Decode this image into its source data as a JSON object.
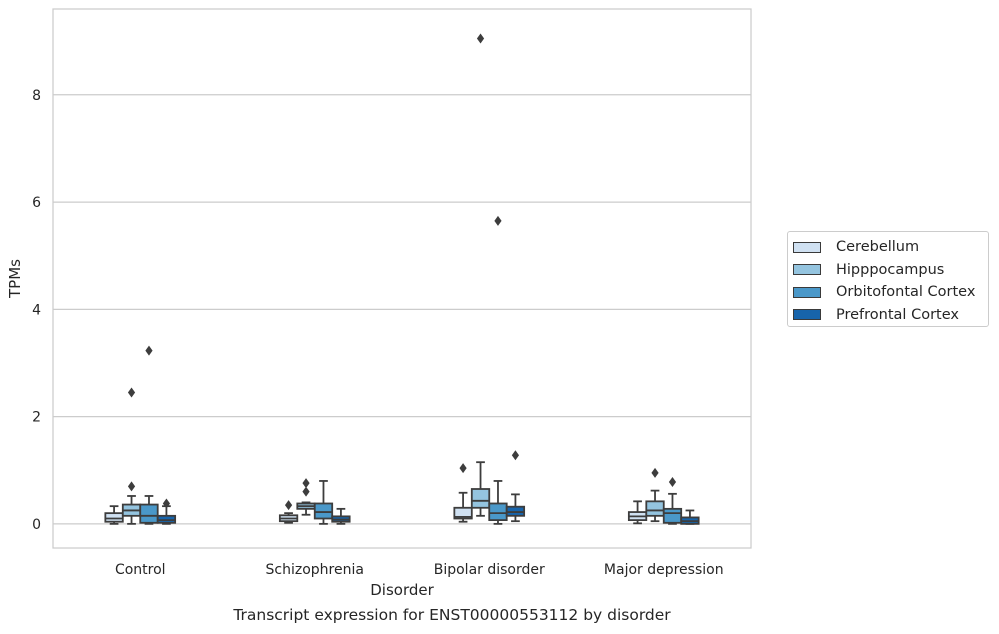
{
  "chart_data": {
    "type": "box",
    "caption": "Transcript expression for ENST00000553112 by disorder",
    "xlabel": "Disorder",
    "ylabel": "TPMs",
    "ylim": [
      -0.45,
      9.6
    ],
    "yticks": [
      0,
      2,
      4,
      6,
      8
    ],
    "grid": "horizontal",
    "legend_position": "right",
    "categories": [
      "Control",
      "Schizophrenia",
      "Bipolar disorder",
      "Major depression"
    ],
    "series": [
      {
        "name": "Cerebellum",
        "color": "#d0e1f2",
        "boxes": [
          {
            "whislo": 0.0,
            "q1": 0.04,
            "med": 0.1,
            "q3": 0.2,
            "whishi": 0.33,
            "fliers": []
          },
          {
            "whislo": 0.02,
            "q1": 0.05,
            "med": 0.1,
            "q3": 0.16,
            "whishi": 0.2,
            "fliers": [
              0.35
            ]
          },
          {
            "whislo": 0.04,
            "q1": 0.1,
            "med": 0.13,
            "q3": 0.3,
            "whishi": 0.58,
            "fliers": [
              1.04
            ]
          },
          {
            "whislo": 0.01,
            "q1": 0.07,
            "med": 0.14,
            "q3": 0.22,
            "whishi": 0.42,
            "fliers": []
          }
        ]
      },
      {
        "name": "Hipppocampus",
        "color": "#94c4df",
        "boxes": [
          {
            "whislo": 0.0,
            "q1": 0.15,
            "med": 0.25,
            "q3": 0.36,
            "whishi": 0.52,
            "fliers": [
              0.7,
              2.45
            ]
          },
          {
            "whislo": 0.17,
            "q1": 0.28,
            "med": 0.33,
            "q3": 0.38,
            "whishi": 0.4,
            "fliers": [
              0.6,
              0.76
            ]
          },
          {
            "whislo": 0.15,
            "q1": 0.3,
            "med": 0.43,
            "q3": 0.65,
            "whishi": 1.15,
            "fliers": [
              9.05
            ]
          },
          {
            "whislo": 0.05,
            "q1": 0.15,
            "med": 0.25,
            "q3": 0.42,
            "whishi": 0.62,
            "fliers": [
              0.95
            ]
          }
        ]
      },
      {
        "name": "Orbitofontal Cortex",
        "color": "#4a98c9",
        "boxes": [
          {
            "whislo": 0.0,
            "q1": 0.02,
            "med": 0.15,
            "q3": 0.36,
            "whishi": 0.52,
            "fliers": [
              3.23
            ]
          },
          {
            "whislo": 0.0,
            "q1": 0.1,
            "med": 0.22,
            "q3": 0.38,
            "whishi": 0.8,
            "fliers": []
          },
          {
            "whislo": 0.0,
            "q1": 0.07,
            "med": 0.2,
            "q3": 0.38,
            "whishi": 0.8,
            "fliers": [
              5.65
            ]
          },
          {
            "whislo": 0.0,
            "q1": 0.02,
            "med": 0.2,
            "q3": 0.28,
            "whishi": 0.56,
            "fliers": [
              0.78
            ]
          }
        ]
      },
      {
        "name": "Prefrontal Cortex",
        "color": "#1764ab",
        "boxes": [
          {
            "whislo": 0.0,
            "q1": 0.02,
            "med": 0.07,
            "q3": 0.15,
            "whishi": 0.33,
            "fliers": [
              0.38
            ]
          },
          {
            "whislo": 0.0,
            "q1": 0.04,
            "med": 0.08,
            "q3": 0.14,
            "whishi": 0.28,
            "fliers": []
          },
          {
            "whislo": 0.05,
            "q1": 0.15,
            "med": 0.22,
            "q3": 0.32,
            "whishi": 0.55,
            "fliers": [
              1.28
            ]
          },
          {
            "whislo": 0.0,
            "q1": 0.0,
            "med": 0.05,
            "q3": 0.12,
            "whishi": 0.25,
            "fliers": []
          }
        ]
      }
    ]
  }
}
